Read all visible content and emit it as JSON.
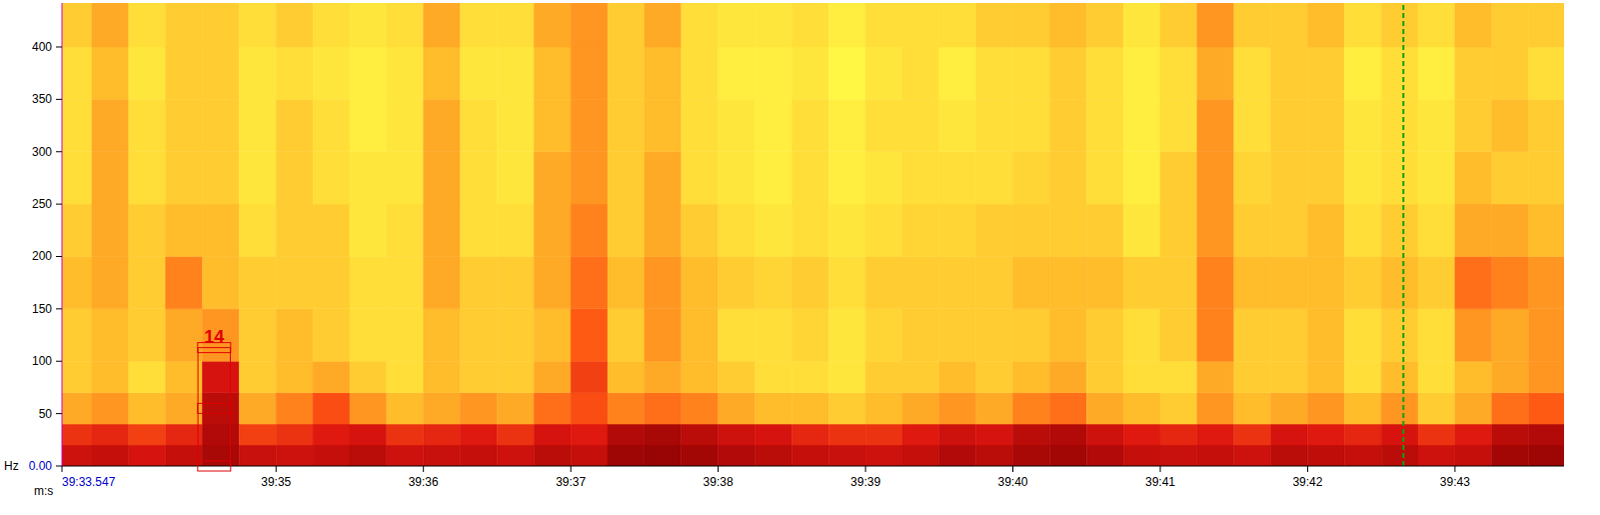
{
  "chart_data": {
    "type": "spectrogram",
    "x_label": "m:s",
    "y_label": "Hz",
    "xlim": [
      33.547,
      43.74
    ],
    "ylim": [
      0,
      442
    ],
    "xticks": [
      {
        "value": 33.547,
        "label": "39:33.547"
      },
      {
        "value": 35,
        "label": "39:35"
      },
      {
        "value": 36,
        "label": "39:36"
      },
      {
        "value": 37,
        "label": "39:37"
      },
      {
        "value": 38,
        "label": "39:38"
      },
      {
        "value": 39,
        "label": "39:39"
      },
      {
        "value": 40,
        "label": "39:40"
      },
      {
        "value": 41,
        "label": "39:41"
      },
      {
        "value": 42,
        "label": "39:42"
      },
      {
        "value": 43,
        "label": "39:43"
      }
    ],
    "yticks": [
      {
        "value": 0,
        "label": "0.00"
      },
      50,
      100,
      150,
      200,
      250,
      300,
      350,
      400
    ],
    "zlim": [
      40,
      100
    ],
    "time_edges": [
      33.547,
      33.75,
      34,
      34.25,
      34.5,
      34.75,
      35,
      35.25,
      35.5,
      35.75,
      36,
      36.25,
      36.5,
      36.75,
      37,
      37.25,
      37.5,
      37.75,
      38,
      38.25,
      38.5,
      38.75,
      39,
      39.25,
      39.5,
      39.75,
      40,
      40.25,
      40.5,
      40.75,
      41,
      41.25,
      41.5,
      41.75,
      42,
      42.25,
      42.5,
      42.75,
      43,
      43.25,
      43.5,
      43.74
    ],
    "freq_edges": [
      0,
      20,
      40,
      70,
      100,
      150,
      200,
      250,
      300,
      350,
      400,
      442
    ],
    "cells": [
      [
        84,
        86,
        82,
        86,
        92,
        85,
        84,
        86,
        88,
        84,
        85,
        86,
        84,
        88,
        86,
        94,
        95,
        93,
        90,
        88,
        86,
        85,
        84,
        86,
        90,
        88,
        92,
        93,
        90,
        86,
        85,
        86,
        84,
        88,
        87,
        86,
        88,
        84,
        86,
        93,
        94
      ],
      [
        76,
        78,
        74,
        78,
        90,
        74,
        76,
        80,
        82,
        76,
        78,
        80,
        76,
        82,
        80,
        90,
        92,
        88,
        84,
        82,
        78,
        76,
        76,
        80,
        84,
        82,
        88,
        90,
        84,
        80,
        78,
        80,
        76,
        82,
        80,
        78,
        82,
        76,
        80,
        88,
        90
      ],
      [
        62,
        64,
        60,
        62,
        88,
        62,
        66,
        72,
        64,
        60,
        62,
        64,
        62,
        68,
        72,
        66,
        68,
        66,
        62,
        60,
        60,
        58,
        60,
        62,
        64,
        62,
        66,
        68,
        62,
        60,
        58,
        64,
        60,
        62,
        64,
        60,
        64,
        58,
        62,
        68,
        70
      ],
      [
        58,
        60,
        56,
        60,
        82,
        58,
        60,
        62,
        58,
        56,
        60,
        58,
        58,
        62,
        74,
        60,
        62,
        60,
        58,
        56,
        56,
        55,
        58,
        58,
        60,
        58,
        60,
        62,
        58,
        56,
        56,
        62,
        58,
        58,
        60,
        56,
        60,
        56,
        60,
        62,
        64
      ],
      [
        58,
        60,
        58,
        62,
        64,
        58,
        60,
        58,
        56,
        56,
        60,
        58,
        58,
        60,
        70,
        58,
        64,
        60,
        56,
        56,
        57,
        55,
        57,
        58,
        58,
        58,
        58,
        60,
        58,
        56,
        58,
        66,
        58,
        58,
        60,
        56,
        58,
        56,
        64,
        62,
        64
      ],
      [
        60,
        62,
        58,
        66,
        60,
        58,
        58,
        58,
        56,
        56,
        62,
        58,
        58,
        62,
        68,
        60,
        64,
        60,
        58,
        57,
        58,
        56,
        58,
        58,
        58,
        58,
        60,
        60,
        60,
        58,
        58,
        66,
        60,
        60,
        60,
        58,
        60,
        58,
        68,
        66,
        64
      ],
      [
        58,
        62,
        58,
        60,
        60,
        56,
        58,
        58,
        55,
        56,
        62,
        56,
        56,
        62,
        66,
        58,
        62,
        58,
        56,
        55,
        56,
        55,
        56,
        57,
        57,
        58,
        58,
        58,
        58,
        55,
        58,
        64,
        58,
        58,
        60,
        56,
        58,
        56,
        62,
        62,
        60
      ],
      [
        56,
        62,
        56,
        58,
        58,
        55,
        58,
        56,
        55,
        55,
        62,
        56,
        55,
        62,
        64,
        58,
        62,
        56,
        55,
        54,
        56,
        54,
        55,
        56,
        56,
        56,
        57,
        58,
        56,
        54,
        58,
        64,
        57,
        58,
        58,
        55,
        56,
        55,
        60,
        58,
        58
      ],
      [
        56,
        62,
        56,
        58,
        58,
        55,
        58,
        56,
        54,
        55,
        62,
        56,
        55,
        60,
        64,
        58,
        60,
        56,
        55,
        54,
        56,
        54,
        56,
        56,
        55,
        56,
        56,
        58,
        56,
        54,
        56,
        64,
        56,
        58,
        58,
        55,
        56,
        55,
        58,
        60,
        58
      ],
      [
        56,
        60,
        55,
        58,
        58,
        55,
        56,
        55,
        54,
        55,
        60,
        55,
        55,
        60,
        64,
        58,
        60,
        56,
        54,
        54,
        55,
        53,
        55,
        56,
        54,
        56,
        56,
        58,
        56,
        54,
        56,
        62,
        56,
        58,
        58,
        54,
        56,
        54,
        58,
        58,
        56
      ],
      [
        58,
        62,
        56,
        58,
        58,
        56,
        58,
        56,
        55,
        56,
        62,
        56,
        56,
        62,
        64,
        58,
        62,
        56,
        55,
        55,
        56,
        54,
        56,
        56,
        56,
        58,
        58,
        60,
        58,
        55,
        58,
        64,
        58,
        58,
        60,
        56,
        58,
        56,
        60,
        58,
        58
      ]
    ],
    "selection": {
      "label": "14",
      "x": [
        34.47,
        34.69
      ],
      "y": [
        0,
        113
      ],
      "marks": [
        0,
        55,
        113
      ]
    },
    "cursor": {
      "x": 42.65
    }
  }
}
